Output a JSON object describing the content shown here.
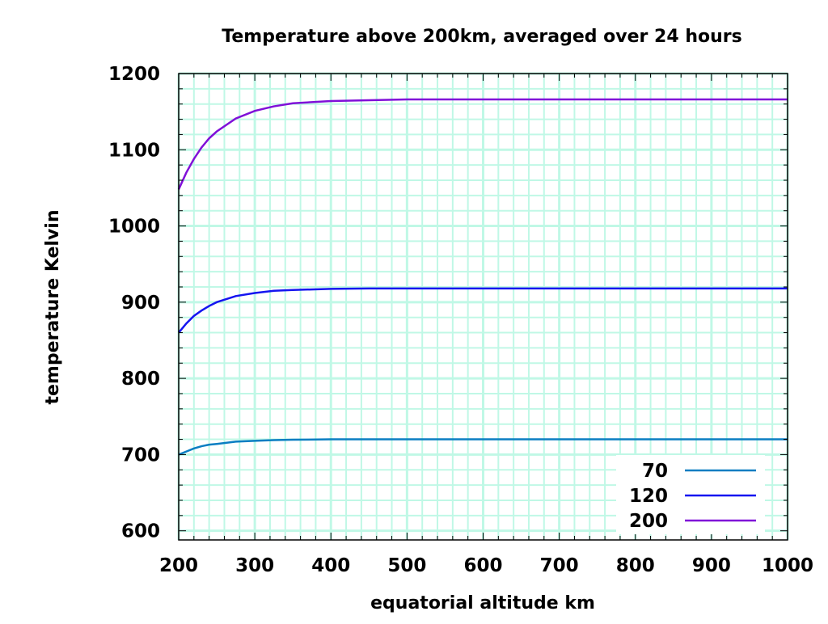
{
  "chart_data": {
    "type": "line",
    "title": "Temperature above 200km, averaged over 24 hours",
    "xlabel": "equatorial altitude km",
    "ylabel": "temperature Kelvin",
    "xlim": [
      200,
      1000
    ],
    "ylim": [
      588,
      1200
    ],
    "xticks": [
      200,
      300,
      400,
      500,
      600,
      700,
      800,
      900,
      1000
    ],
    "yticks": [
      600,
      700,
      800,
      900,
      1000,
      1100,
      1200
    ],
    "x_minor_step": 20,
    "y_minor_step": 20,
    "grid": true,
    "legend_position": "bottom-right",
    "x": [
      200,
      210,
      220,
      230,
      240,
      250,
      275,
      300,
      325,
      350,
      400,
      450,
      500,
      600,
      700,
      800,
      900,
      1000
    ],
    "series": [
      {
        "name": "70",
        "color": "#0a7ec2",
        "values": [
          700,
          704,
          708,
          711,
          713,
          714,
          717,
          718,
          719,
          719.5,
          720,
          720,
          720,
          720,
          720,
          720,
          720,
          720
        ]
      },
      {
        "name": "120",
        "color": "#1515f0",
        "values": [
          860,
          872,
          882,
          889,
          895,
          900,
          908,
          912,
          915,
          916,
          917.5,
          918,
          918,
          918,
          918,
          918,
          918,
          918
        ]
      },
      {
        "name": "200",
        "color": "#8010d8",
        "values": [
          1048,
          1070,
          1088,
          1103,
          1115,
          1124,
          1141,
          1151,
          1157,
          1161,
          1164,
          1165,
          1166,
          1166,
          1166,
          1166,
          1166,
          1166
        ]
      }
    ],
    "colors": {
      "grid": "#c0f8e6",
      "axis": "#000000"
    }
  }
}
